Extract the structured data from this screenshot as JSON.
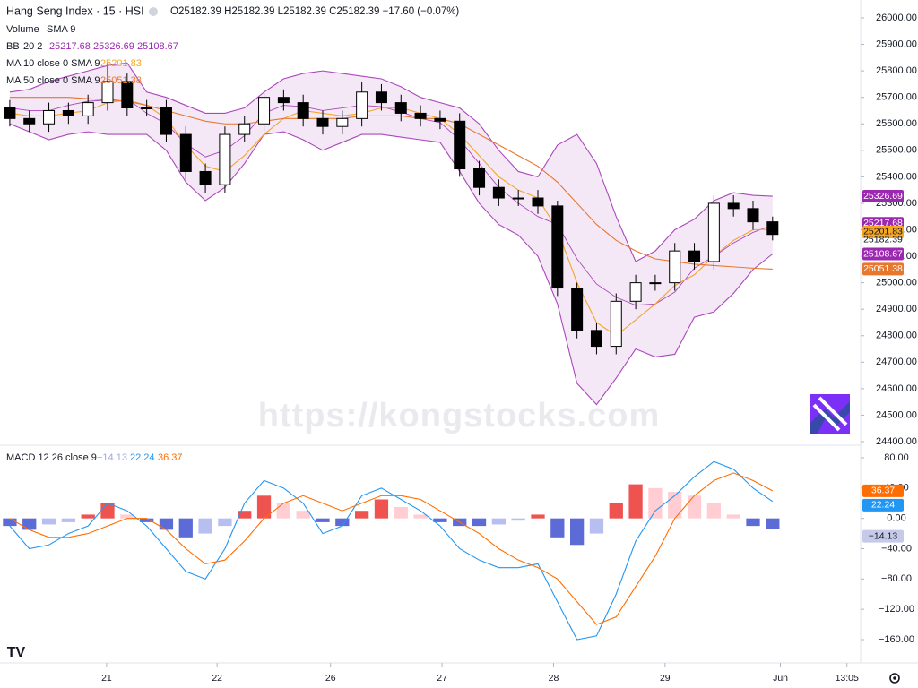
{
  "chart_data": [
    {
      "type": "candlestick",
      "title": "Hang Seng Index · 15 · HSI",
      "ohlc_legend": "O25182.39 H25182.39 L25182.39 C25182.39 −17.60 (−0.07%)",
      "volume_legend": {
        "name": "Volume",
        "params": "SMA 9"
      },
      "bb_legend": {
        "name": "BB",
        "params": "20 2"
      },
      "ma10_legend": "MA 10 close 0 SMA 9",
      "ma50_legend": "MA 50 close 0 SMA 9",
      "watermark": "https://kongstocks.com",
      "xlim": [
        -0.5,
        43.5
      ],
      "xticks": [
        {
          "value": 4.95,
          "label": "21"
        },
        {
          "value": 10.6,
          "label": "22"
        },
        {
          "value": 16.4,
          "label": "26"
        },
        {
          "value": 22.1,
          "label": "27"
        },
        {
          "value": 27.8,
          "label": "28"
        },
        {
          "value": 33.5,
          "label": "29"
        },
        {
          "value": 39.4,
          "label": "Jun"
        },
        {
          "value": 42.8,
          "label": "13:05"
        }
      ],
      "ylim": [
        24400,
        26000
      ],
      "yticks": [
        {
          "value": 24400,
          "label": "24400.00"
        },
        {
          "value": 24500,
          "label": "24500.00"
        },
        {
          "value": 24600,
          "label": "24600.00"
        },
        {
          "value": 24700,
          "label": "24700.00"
        },
        {
          "value": 24800,
          "label": "24800.00"
        },
        {
          "value": 24900,
          "label": "24900.00"
        },
        {
          "value": 25000,
          "label": "25000.00"
        },
        {
          "value": 25100,
          "label": "25100.00"
        },
        {
          "value": 25200,
          "label": "25200.00"
        },
        {
          "value": 25300,
          "label": "25300.00"
        },
        {
          "value": 25400,
          "label": "25400.00"
        },
        {
          "value": 25500,
          "label": "25500.00"
        },
        {
          "value": 25600,
          "label": "25600.00"
        },
        {
          "value": 25700,
          "label": "25700.00"
        },
        {
          "value": 25800,
          "label": "25800.00"
        },
        {
          "value": 25900,
          "label": "25900.00"
        },
        {
          "value": 26000,
          "label": "26000.00"
        }
      ],
      "up_color": "#ffffff",
      "down_color": "#000000",
      "open": [
        25660,
        25620,
        25600,
        25650,
        25630,
        25680,
        25760,
        25660,
        25660,
        25560,
        25420,
        25370,
        25560,
        25600,
        25700,
        25680,
        25620,
        25590,
        25620,
        25720,
        25680,
        25640,
        25620,
        25610,
        25430,
        25360,
        25320,
        25320,
        25290,
        24980,
        24820,
        24760,
        24930,
        25000,
        25000,
        25120,
        25080,
        25300,
        25280,
        25230
      ],
      "high": [
        25690,
        25650,
        25680,
        25680,
        25710,
        25830,
        25790,
        25690,
        25690,
        25590,
        25450,
        25590,
        25630,
        25730,
        25730,
        25710,
        25650,
        25650,
        25760,
        25750,
        25710,
        25670,
        25650,
        25640,
        25460,
        25390,
        25350,
        25350,
        25310,
        25000,
        24850,
        24960,
        25030,
        25030,
        25150,
        25150,
        25330,
        25330,
        25310,
        25250
      ],
      "low": [
        25590,
        25570,
        25570,
        25600,
        25600,
        25650,
        25630,
        25630,
        25530,
        25390,
        25340,
        25340,
        25530,
        25570,
        25650,
        25590,
        25560,
        25560,
        25590,
        25650,
        25610,
        25590,
        25580,
        25400,
        25330,
        25290,
        25290,
        25260,
        24950,
        24790,
        24730,
        24730,
        24900,
        24970,
        24970,
        25050,
        25050,
        25250,
        25200,
        25160
      ],
      "close": [
        25620,
        25600,
        25650,
        25630,
        25680,
        25760,
        25660,
        25660,
        25560,
        25420,
        25370,
        25560,
        25600,
        25700,
        25680,
        25620,
        25590,
        25620,
        25720,
        25680,
        25640,
        25620,
        25610,
        25430,
        25360,
        25320,
        25320,
        25290,
        24980,
        24820,
        24760,
        24930,
        25000,
        25000,
        25120,
        25080,
        25300,
        25280,
        25230,
        25182.39
      ],
      "series": [
        {
          "name": "BB upper",
          "color": "#ab47bc",
          "values": [
            25720,
            25730,
            25760,
            25780,
            25800,
            25820,
            25830,
            25720,
            25700,
            25670,
            25640,
            25640,
            25660,
            25720,
            25770,
            25790,
            25800,
            25790,
            25780,
            25770,
            25740,
            25700,
            25680,
            25660,
            25600,
            25500,
            25420,
            25400,
            25520,
            25560,
            25450,
            25250,
            25080,
            25120,
            25200,
            25240,
            25310,
            25340,
            25330,
            25326.69
          ]
        },
        {
          "name": "BB basis",
          "color": "#ab47bc",
          "values": [
            25660,
            25650,
            25650,
            25670,
            25685,
            25690,
            25695,
            25640,
            25600,
            25525,
            25475,
            25500,
            25555,
            25640,
            25670,
            25665,
            25650,
            25660,
            25670,
            25665,
            25645,
            25620,
            25605,
            25540,
            25450,
            25360,
            25300,
            25250,
            25220,
            25090,
            24995,
            24945,
            24915,
            24920,
            24965,
            25055,
            25100,
            25150,
            25190,
            25217.68
          ]
        },
        {
          "name": "BB lower",
          "color": "#ab47bc",
          "values": [
            25600,
            25570,
            25540,
            25560,
            25570,
            25560,
            25560,
            25560,
            25500,
            25380,
            25310,
            25360,
            25450,
            25560,
            25570,
            25540,
            25500,
            25530,
            25560,
            25560,
            25550,
            25540,
            25530,
            25420,
            25300,
            25220,
            25180,
            25100,
            24920,
            24620,
            24540,
            24640,
            24750,
            24720,
            24730,
            24870,
            24890,
            24960,
            25050,
            25108.67
          ]
        },
        {
          "name": "MA 10",
          "color": "#f5a623",
          "values": [
            25640,
            25630,
            25630,
            25640,
            25650,
            25680,
            25690,
            25670,
            25620,
            25520,
            25440,
            25420,
            25480,
            25560,
            25620,
            25650,
            25640,
            25630,
            25640,
            25660,
            25660,
            25640,
            25620,
            25560,
            25480,
            25400,
            25350,
            25320,
            25200,
            25000,
            24850,
            24800,
            24860,
            24920,
            24990,
            25030,
            25100,
            25160,
            25200,
            25201.83
          ]
        },
        {
          "name": "MA 50",
          "color": "#e8772e",
          "values": [
            25700,
            25700,
            25700,
            25700,
            25695,
            25690,
            25685,
            25670,
            25650,
            25630,
            25610,
            25600,
            25600,
            25610,
            25620,
            25620,
            25620,
            25620,
            25630,
            25630,
            25630,
            25620,
            25620,
            25600,
            25560,
            25520,
            25480,
            25440,
            25380,
            25300,
            25220,
            25160,
            25120,
            25090,
            25080,
            25070,
            25065,
            25060,
            25055,
            25051.38
          ]
        }
      ]
    },
    {
      "type": "macd",
      "legend": {
        "label": "MACD 12 26 close 9",
        "hist": "−14.13",
        "macd": "22.24",
        "signal": "36.37"
      },
      "ylim": [
        -180,
        100
      ],
      "yticks": [
        {
          "value": 80,
          "label": "80.00"
        },
        {
          "value": 40,
          "label": "40.00"
        },
        {
          "value": 0,
          "label": "0.00"
        },
        {
          "value": -40,
          "label": "−40.00"
        },
        {
          "value": -80,
          "label": "−80.00"
        },
        {
          "value": -120,
          "label": "−120.00"
        },
        {
          "value": -160,
          "label": "−160.00"
        }
      ],
      "series": [
        {
          "name": "Histogram",
          "color": "#ef5350",
          "values": [
            -10,
            -15,
            -8,
            -5,
            5,
            20,
            5,
            -5,
            -15,
            -25,
            -20,
            -10,
            10,
            30,
            20,
            10,
            -5,
            -10,
            10,
            25,
            15,
            5,
            -5,
            -10,
            -10,
            -8,
            -3,
            5,
            -25,
            -35,
            -20,
            20,
            45,
            40,
            35,
            30,
            20,
            5,
            -10,
            -14.13
          ]
        },
        {
          "name": "MACD",
          "color": "#2196f3",
          "values": [
            -10,
            -40,
            -35,
            -20,
            -10,
            20,
            10,
            -10,
            -40,
            -70,
            -80,
            -40,
            20,
            50,
            40,
            20,
            -20,
            -10,
            30,
            40,
            25,
            10,
            -10,
            -40,
            -55,
            -65,
            -65,
            -60,
            -110,
            -160,
            -155,
            -100,
            -30,
            10,
            30,
            55,
            75,
            65,
            40,
            22.24
          ]
        },
        {
          "name": "Signal",
          "color": "#ff6d00",
          "values": [
            0,
            -15,
            -25,
            -25,
            -20,
            -10,
            0,
            0,
            -15,
            -40,
            -60,
            -55,
            -30,
            0,
            20,
            30,
            20,
            10,
            20,
            30,
            30,
            25,
            10,
            -5,
            -20,
            -40,
            -55,
            -65,
            -80,
            -110,
            -140,
            -130,
            -90,
            -50,
            0,
            30,
            50,
            60,
            50,
            36.37
          ]
        }
      ]
    }
  ]
}
